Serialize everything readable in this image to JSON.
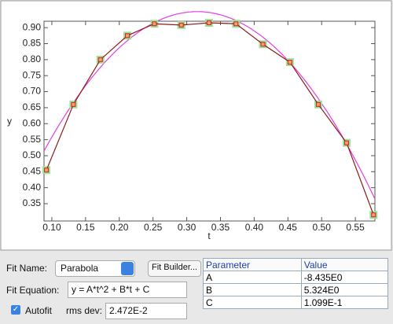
{
  "chart_data": {
    "type": "line",
    "x_label": "t",
    "y_label": "y",
    "x": [
      0.092,
      0.132,
      0.172,
      0.212,
      0.252,
      0.292,
      0.333,
      0.373,
      0.413,
      0.453,
      0.495,
      0.537,
      0.577
    ],
    "values": [
      0.455,
      0.66,
      0.8,
      0.875,
      0.912,
      0.908,
      0.915,
      0.912,
      0.848,
      0.792,
      0.66,
      0.54,
      0.315
    ],
    "color": "#8b1a1a",
    "marker_color": "#9be39b",
    "fit_color": "#e040e0",
    "xlim": [
      0.0884,
      0.579
    ],
    "ylim": [
      0.296,
      0.92
    ],
    "xticks": [
      {
        "value": 0.1,
        "label": "0.10"
      },
      0.15,
      {
        "value": 0.2,
        "label": "0.20"
      },
      0.25,
      {
        "value": 0.3,
        "label": "0.30"
      },
      0.35,
      {
        "value": 0.4,
        "label": "0.40"
      },
      0.45,
      {
        "value": 0.5,
        "label": "0.50"
      },
      0.55
    ],
    "yticks": [
      0.35,
      {
        "value": 0.4,
        "label": "0.40"
      },
      0.45,
      {
        "value": 0.5,
        "label": "0.50"
      },
      0.55,
      {
        "value": 0.6,
        "label": "0.60"
      },
      0.65,
      {
        "value": 0.7,
        "label": "0.70"
      },
      0.75,
      {
        "value": 0.8,
        "label": "0.80"
      },
      0.85,
      {
        "value": 0.9,
        "label": "0.90"
      }
    ]
  },
  "fit_panel": {
    "name_label": "Fit Name:",
    "name_value": "Parabola",
    "builder_button": "Fit Builder...",
    "equation_label": "Fit Equation:",
    "equation_value": "y = A*t^2 + B*t + C",
    "autofit_label": "Autofit",
    "rms_label": "rms dev:",
    "rms_value": "2.472E-2",
    "parameters": {
      "header": [
        "Parameter",
        "Value"
      ],
      "rows": [
        [
          "A",
          "-8.435E0"
        ],
        [
          "B",
          "5.324E0"
        ],
        [
          "C",
          "1.099E-1"
        ]
      ]
    }
  }
}
